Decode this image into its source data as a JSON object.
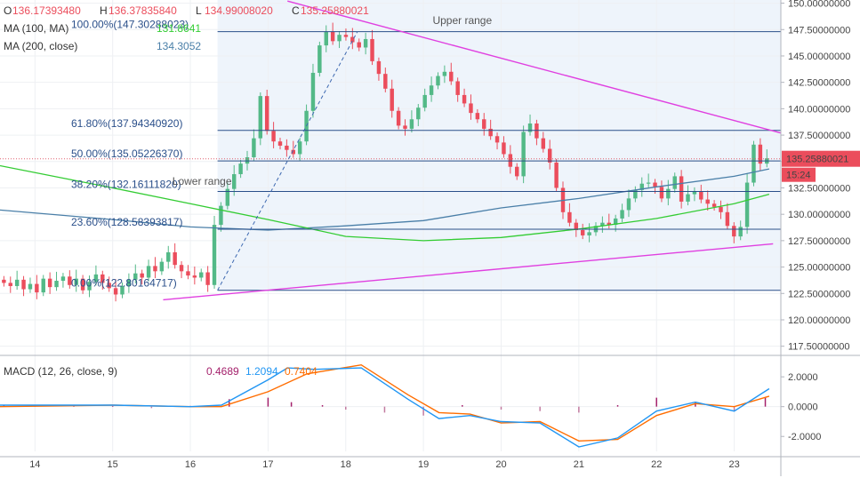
{
  "header": {
    "ohlc": [
      {
        "key": "O",
        "value": "136.17393480"
      },
      {
        "key": "H",
        "value": "136.37835840"
      },
      {
        "key": "L",
        "value": "134.99008020"
      },
      {
        "key": "C",
        "value": "135.25880021"
      }
    ],
    "ma100_label": "MA (100, MA)",
    "ma100_value": "131.8641",
    "ma200_label": "MA (200, close)",
    "ma200_value": "134.3052",
    "macd_label": "MACD (12, 26, close, 9)",
    "macd_values": [
      "0.4689",
      "1.2094",
      "0.7404"
    ]
  },
  "annotations": {
    "upper_range": "Upper range",
    "lower_range": "Lower range"
  },
  "price_tag": {
    "value": "135.25880021",
    "countdown": "15:24"
  },
  "colors": {
    "up": "#53b987",
    "down": "#eb4d5c",
    "ma100": "#33cc33",
    "ma200": "#4a7fa8",
    "trendline": "#e040e0",
    "fib": "#2a4f8a",
    "macd": "#2196f3",
    "signal": "#ff6d00",
    "hist": "#a4206b",
    "range_fill": "#eef4fb"
  },
  "chart_data": [
    {
      "type": "candlestick",
      "title": "",
      "x_ticks": [
        "14",
        "15",
        "16",
        "17",
        "18",
        "19",
        "20",
        "21",
        "22",
        "23"
      ],
      "y_ticks": [
        "150.00000000",
        "147.50000000",
        "145.00000000",
        "142.50000000",
        "140.00000000",
        "137.50000000",
        "135.00000000",
        "132.50000000",
        "130.00000000",
        "127.50000000",
        "125.00000000",
        "122.50000000",
        "120.00000000",
        "117.50000000"
      ],
      "ylim": [
        116.8,
        150.3
      ],
      "xlim": [
        13.55,
        23.6
      ],
      "fib_levels": [
        {
          "label": "100.00%(147.30288023)",
          "value": 147.30288023
        },
        {
          "label": "61.80%(137.94340920)",
          "value": 137.9434092
        },
        {
          "label": "50.00%(135.05226370)",
          "value": 135.0522637
        },
        {
          "label": "38.20%(132.16111820)",
          "value": 132.1611182
        },
        {
          "label": "23.60%(128.58393817)",
          "value": 128.58393817
        },
        {
          "label": "0.00%(122.80164717)",
          "value": 122.80164717
        }
      ],
      "current_price": 135.25880021,
      "trendlines": [
        {
          "name": "upper",
          "from": [
            17.25,
            150.2
          ],
          "to": [
            23.6,
            137.7
          ]
        },
        {
          "name": "lower",
          "from": [
            15.65,
            121.9
          ],
          "to": [
            23.5,
            127.2
          ]
        }
      ],
      "swing_line": {
        "from": [
          16.35,
          122.8
        ],
        "to": [
          18.15,
          147.3
        ]
      },
      "candles_close": [
        123.5,
        123.2,
        123.8,
        122.9,
        123.4,
        122.6,
        123.9,
        123.1,
        123.7,
        124.1,
        123.3,
        123.9,
        122.8,
        123.6,
        124.3,
        123.5,
        123.0,
        122.4,
        123.2,
        123.8,
        124.4,
        124.0,
        125.1,
        124.6,
        125.5,
        126.4,
        125.2,
        124.6,
        124.2,
        124.0,
        124.5,
        123.3,
        129.0,
        130.8,
        132.4,
        133.8,
        134.8,
        135.4,
        137.2,
        141.2,
        137.9,
        136.9,
        136.5,
        136.1,
        135.7,
        136.9,
        139.8,
        143.4,
        146.0,
        147.3,
        146.4,
        147.0,
        146.8,
        146.3,
        145.8,
        146.6,
        144.5,
        143.3,
        141.9,
        139.8,
        138.4,
        138.1,
        139.0,
        140.1,
        141.3,
        142.2,
        143.1,
        143.5,
        142.6,
        141.3,
        140.5,
        139.6,
        139.0,
        138.1,
        137.4,
        136.8,
        135.7,
        134.5,
        133.6,
        137.8,
        138.6,
        137.2,
        136.2,
        134.9,
        132.5,
        130.2,
        129.2,
        128.5,
        128.0,
        128.3,
        128.9,
        129.2,
        129.0,
        129.6,
        130.4,
        131.5,
        132.3,
        132.9,
        133.0,
        132.6,
        131.5,
        132.4,
        133.6,
        131.2,
        131.9,
        132.2,
        131.4,
        131.0,
        130.7,
        130.2,
        128.9,
        127.9,
        128.8,
        133.0,
        136.6,
        134.8,
        135.3
      ],
      "ma100_approx": [
        [
          13.55,
          134.6
        ],
        [
          15.0,
          132.5
        ],
        [
          16.0,
          131.0
        ],
        [
          17.0,
          129.5
        ],
        [
          18.0,
          127.9
        ],
        [
          19.0,
          127.5
        ],
        [
          20.0,
          127.8
        ],
        [
          21.0,
          128.6
        ],
        [
          22.0,
          129.6
        ],
        [
          23.0,
          131.0
        ],
        [
          23.45,
          131.9
        ]
      ],
      "ma200_approx": [
        [
          13.55,
          130.4
        ],
        [
          15.0,
          129.5
        ],
        [
          16.0,
          128.8
        ],
        [
          17.0,
          128.5
        ],
        [
          18.0,
          128.9
        ],
        [
          19.0,
          129.4
        ],
        [
          20.0,
          130.6
        ],
        [
          21.0,
          131.5
        ],
        [
          22.0,
          132.6
        ],
        [
          23.0,
          133.6
        ],
        [
          23.45,
          134.3
        ]
      ]
    },
    {
      "type": "macd",
      "title": "",
      "y_ticks": [
        "2.0000",
        "0.0000",
        "-2.0000"
      ],
      "ylim": [
        -3.0,
        3.2
      ],
      "macd_approx": [
        [
          13.55,
          0.1
        ],
        [
          15.0,
          0.1
        ],
        [
          16.0,
          0.0
        ],
        [
          16.4,
          0.1
        ],
        [
          17.0,
          1.8
        ],
        [
          17.25,
          2.6
        ],
        [
          17.6,
          2.5
        ],
        [
          18.2,
          2.6
        ],
        [
          18.8,
          0.5
        ],
        [
          19.2,
          -0.8
        ],
        [
          19.6,
          -0.6
        ],
        [
          20.0,
          -1.0
        ],
        [
          20.5,
          -1.1
        ],
        [
          21.0,
          -2.7
        ],
        [
          21.5,
          -2.1
        ],
        [
          22.0,
          -0.3
        ],
        [
          22.5,
          0.3
        ],
        [
          23.0,
          -0.3
        ],
        [
          23.45,
          1.2
        ]
      ],
      "signal_approx": [
        [
          13.55,
          0.0
        ],
        [
          15.0,
          0.1
        ],
        [
          16.0,
          0.0
        ],
        [
          16.4,
          0.0
        ],
        [
          17.0,
          1.0
        ],
        [
          17.5,
          2.2
        ],
        [
          18.2,
          2.8
        ],
        [
          18.8,
          0.8
        ],
        [
          19.2,
          -0.4
        ],
        [
          19.6,
          -0.5
        ],
        [
          20.0,
          -1.1
        ],
        [
          20.5,
          -1.0
        ],
        [
          21.0,
          -2.3
        ],
        [
          21.5,
          -2.2
        ],
        [
          22.0,
          -0.6
        ],
        [
          22.5,
          0.2
        ],
        [
          23.0,
          0.0
        ],
        [
          23.45,
          0.7
        ]
      ],
      "hist_approx": [
        [
          13.6,
          0.1
        ],
        [
          14.0,
          0.05
        ],
        [
          14.5,
          0.1
        ],
        [
          15.0,
          0.05
        ],
        [
          15.5,
          -0.1
        ],
        [
          16.0,
          0.05
        ],
        [
          16.5,
          0.5
        ],
        [
          17.0,
          0.6
        ],
        [
          17.3,
          0.3
        ],
        [
          17.7,
          0.1
        ],
        [
          18.0,
          -0.2
        ],
        [
          18.5,
          -0.4
        ],
        [
          19.0,
          -0.6
        ],
        [
          19.5,
          0.1
        ],
        [
          20.0,
          -0.2
        ],
        [
          20.5,
          -0.3
        ],
        [
          21.0,
          -0.4
        ],
        [
          21.5,
          0.1
        ],
        [
          22.0,
          0.6
        ],
        [
          22.5,
          0.3
        ],
        [
          23.0,
          -0.3
        ],
        [
          23.4,
          0.6
        ]
      ]
    }
  ]
}
